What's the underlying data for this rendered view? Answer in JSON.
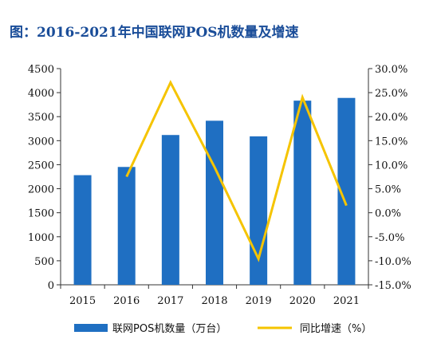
{
  "title": "图：2016-2021年中国联网POS机数量及增速",
  "colors": {
    "title": "#1a4d99",
    "bar": "#1f6fc2",
    "line": "#f5c400"
  },
  "chart_data": {
    "type": "bar",
    "categories": [
      "2015",
      "2016",
      "2017",
      "2018",
      "2019",
      "2020",
      "2021"
    ],
    "series": [
      {
        "name": "联网POS机数量（万台）",
        "type": "bar",
        "axis": "left",
        "values": [
          2282,
          2453,
          3118,
          3415,
          3090,
          3833,
          3890
        ]
      },
      {
        "name": "同比增速（%）",
        "type": "line",
        "axis": "right",
        "values": [
          null,
          7.5,
          27.1,
          9.5,
          -9.6,
          24.0,
          1.5
        ]
      }
    ],
    "yleft": {
      "ylim": [
        0,
        4500
      ],
      "ticks": [
        "0",
        "500",
        "1000",
        "1500",
        "2000",
        "2500",
        "3000",
        "3500",
        "4000",
        "4500"
      ]
    },
    "yright": {
      "ylim": [
        -15,
        30
      ],
      "ticks": [
        "-15.0%",
        "-10.0%",
        "-5.0%",
        "0.0%",
        "5.0%",
        "10.0%",
        "15.0%",
        "20.0%",
        "25.0%",
        "30.0%"
      ]
    },
    "grid": false,
    "legend": "bottom"
  }
}
